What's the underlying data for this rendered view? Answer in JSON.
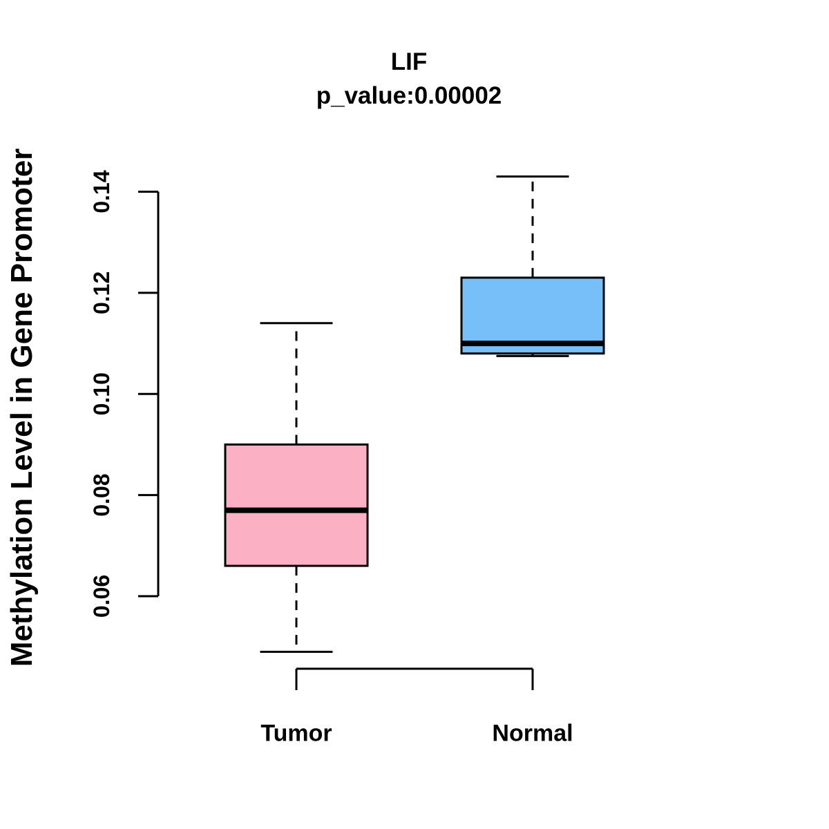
{
  "title": "LIF",
  "subtitle": "p_value:0.00002",
  "chart_data": {
    "type": "boxplot",
    "title": "LIF",
    "subtitle": "p_value:0.00002",
    "ylabel": "Methylation Level in Gene Promoter",
    "xlabel": "",
    "categories": [
      "Tumor",
      "Normal"
    ],
    "ylim": [
      0.06,
      0.14
    ],
    "yticks": [
      0.06,
      0.08,
      0.1,
      0.12,
      0.14
    ],
    "grid": false,
    "legend": "none",
    "series": [
      {
        "name": "Tumor",
        "color": "#FCB0C3",
        "min": 0.049,
        "q1": 0.066,
        "median": 0.077,
        "q3": 0.09,
        "max": 0.114
      },
      {
        "name": "Normal",
        "color": "#76BFF8",
        "min": 0.1075,
        "q1": 0.108,
        "median": 0.11,
        "q3": 0.123,
        "max": 0.143
      }
    ],
    "axis_color": "#000000",
    "whisker_style": "dashed"
  }
}
